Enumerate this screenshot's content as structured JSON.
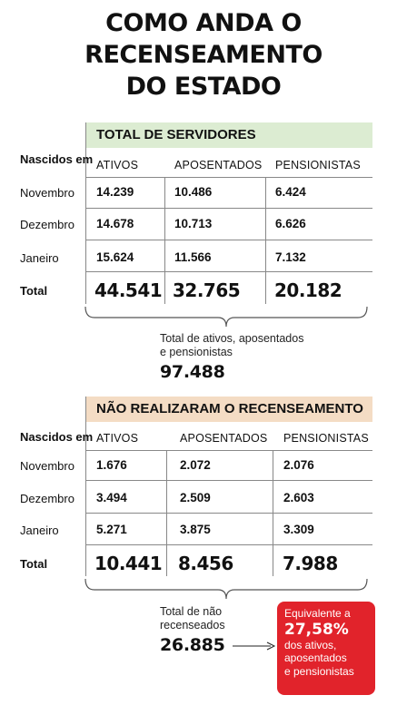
{
  "title": {
    "line1": "COMO ANDA O",
    "line2": "RECENSEAMENTO",
    "line3": "DO ESTADO"
  },
  "table1": {
    "header": "TOTAL DE SERVIDORES",
    "row_header": "Nascidos em",
    "columns": [
      "ATIVOS",
      "APOSENTADOS",
      "PENSIONISTAS"
    ],
    "rows": [
      {
        "label": "Novembro",
        "values": [
          "14.239",
          "10.486",
          "6.424"
        ]
      },
      {
        "label": "Dezembro",
        "values": [
          "14.678",
          "10.713",
          "6.626"
        ]
      },
      {
        "label": "Janeiro",
        "values": [
          "15.624",
          "11.566",
          "7.132"
        ]
      }
    ],
    "total": {
      "label": "Total",
      "values": [
        "44.541",
        "32.765",
        "20.182"
      ]
    },
    "summary_text_line1": "Total de ativos, aposentados",
    "summary_text_line2": "e pensionistas",
    "summary_value": "97.488"
  },
  "table2": {
    "header": "NÃO REALIZARAM O RECENSEAMENTO",
    "row_header": "Nascidos em",
    "columns": [
      "ATIVOS",
      "APOSENTADOS",
      "PENSIONISTAS"
    ],
    "rows": [
      {
        "label": "Novembro",
        "values": [
          "1.676",
          "2.072",
          "2.076"
        ]
      },
      {
        "label": "Dezembro",
        "values": [
          "3.494",
          "2.509",
          "2.603"
        ]
      },
      {
        "label": "Janeiro",
        "values": [
          "5.271",
          "3.875",
          "3.309"
        ]
      }
    ],
    "total": {
      "label": "Total",
      "values": [
        "10.441",
        "8.456",
        "7.988"
      ]
    },
    "summary_text_line1": "Total de não",
    "summary_text_line2": "recenseados",
    "summary_value": "26.885"
  },
  "highlight": {
    "line1": "Equivalente a",
    "percent": "27,58%",
    "line2": "dos ativos,",
    "line3": "aposentados",
    "line4": "e pensionistas",
    "color": "#e1232b"
  },
  "colors": {
    "header1_bg": "#dcecd2",
    "header2_bg": "#f4dcc4"
  }
}
